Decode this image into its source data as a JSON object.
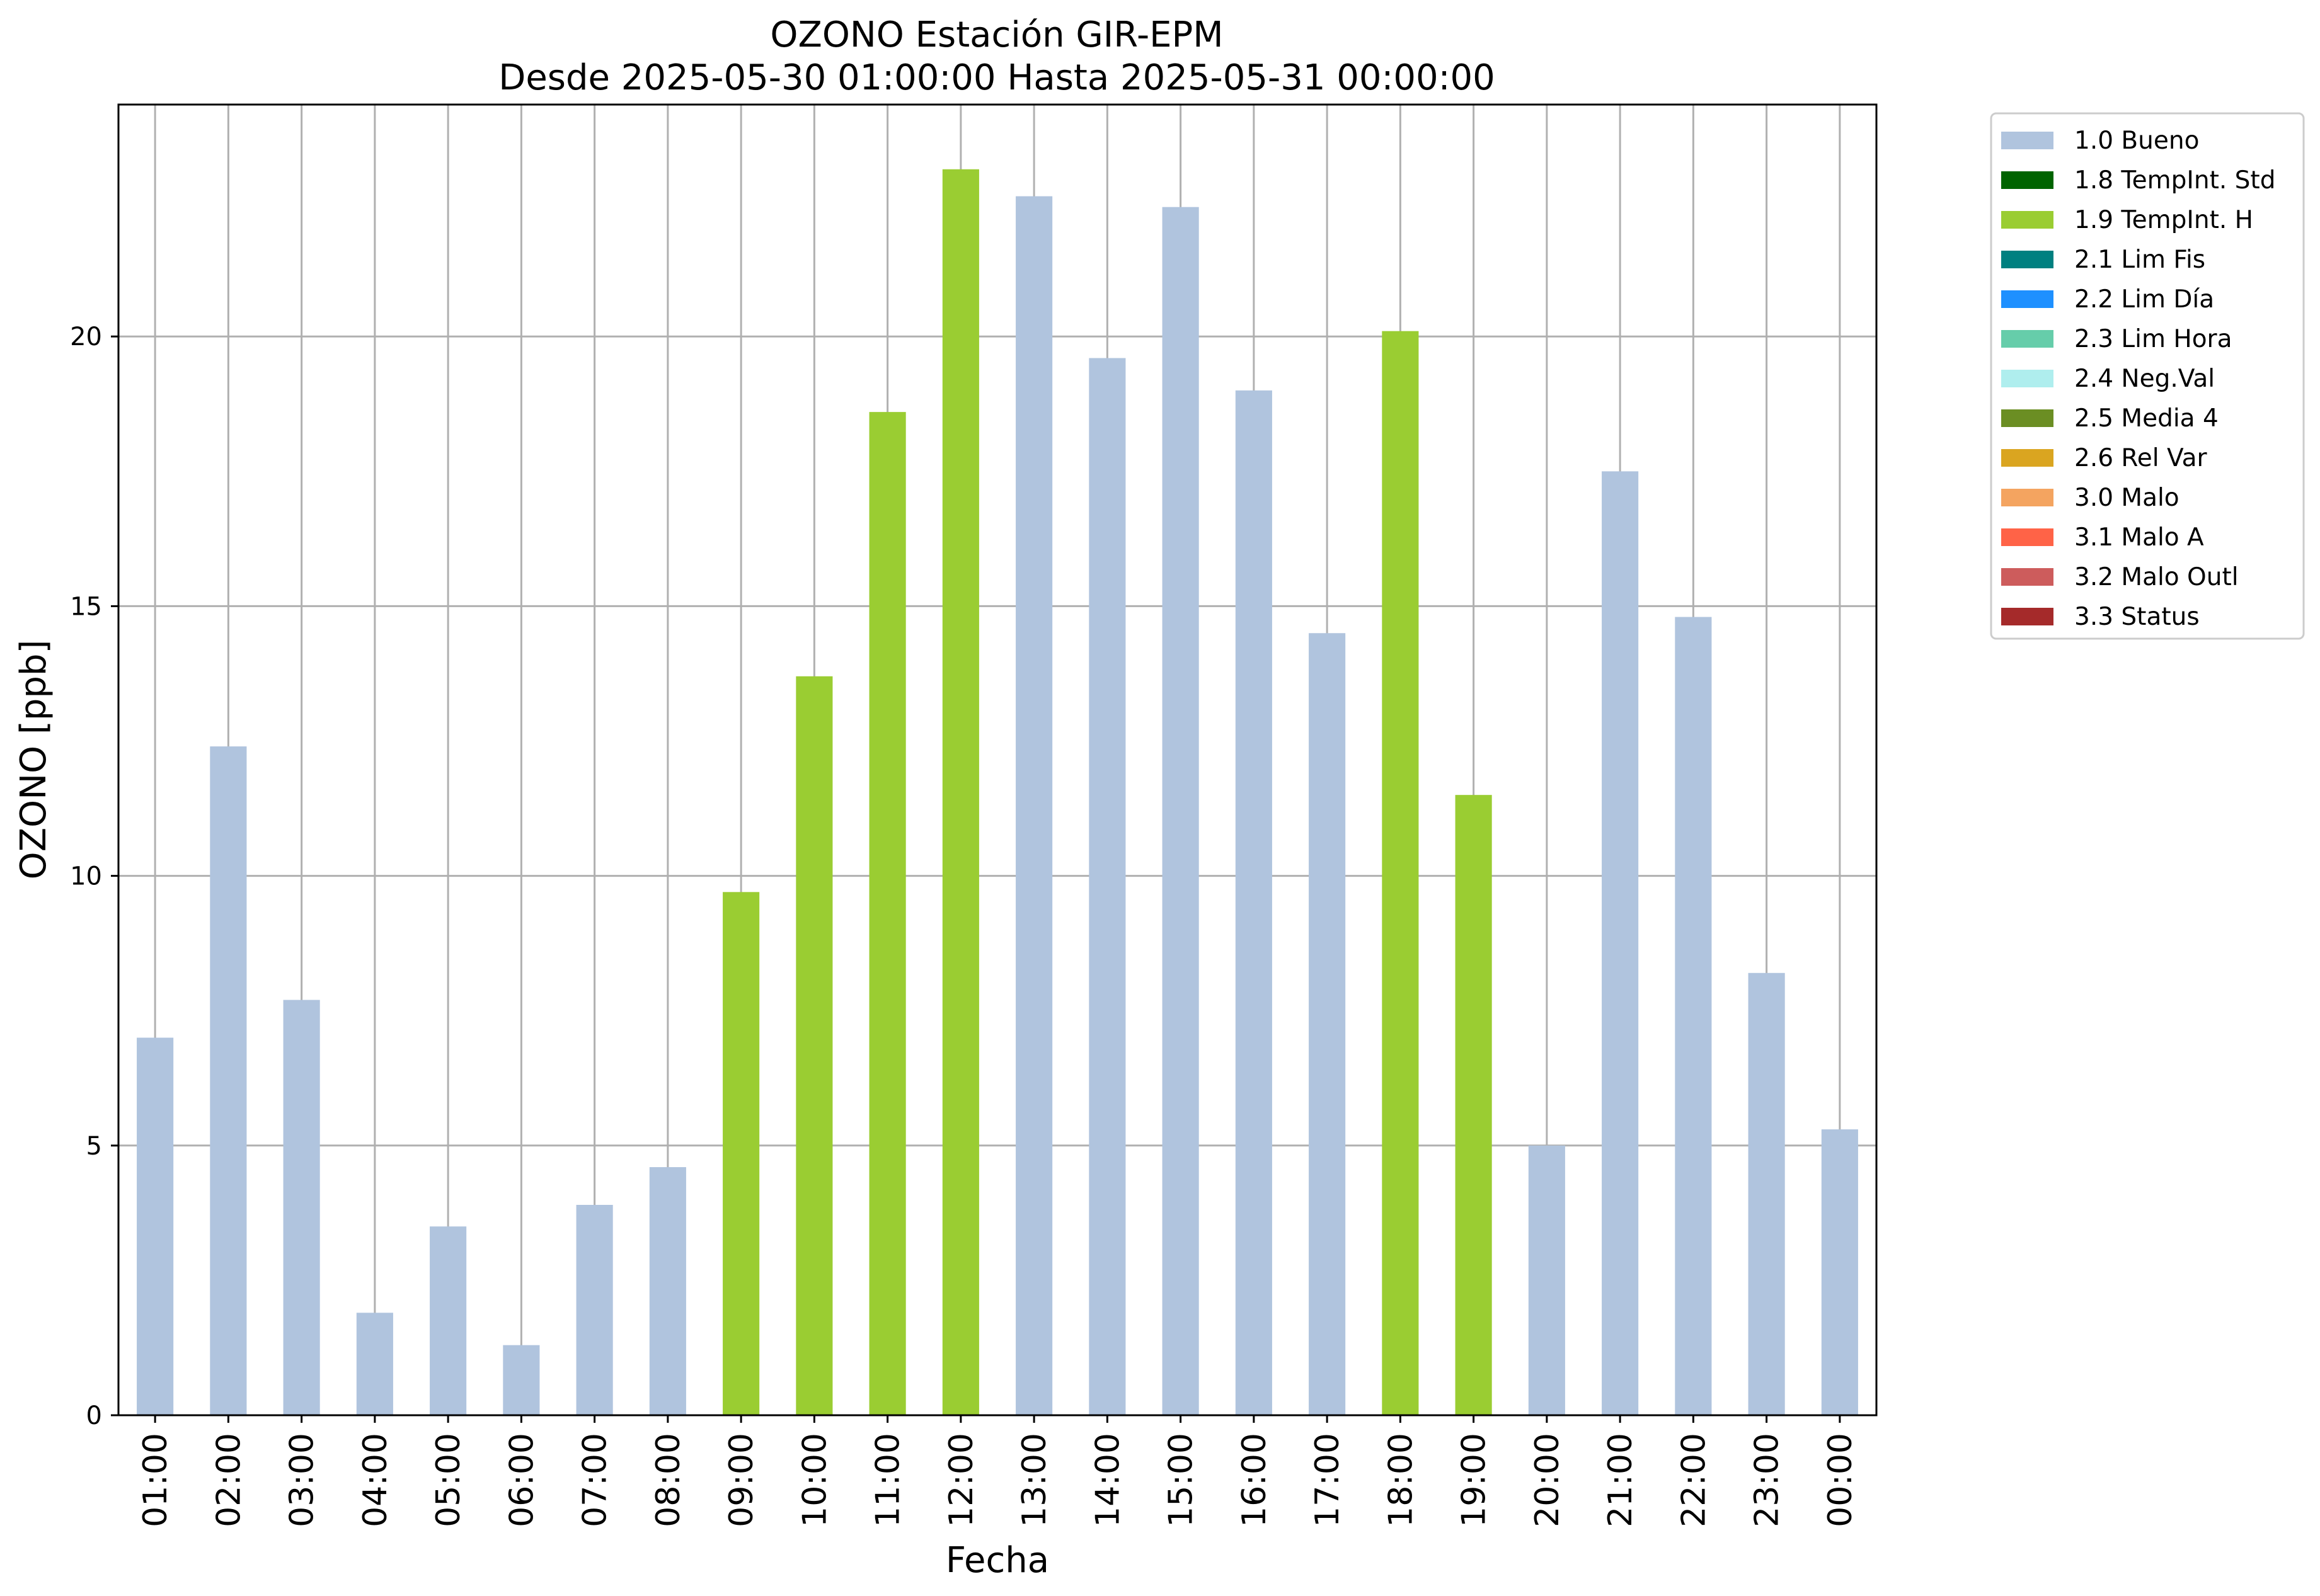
{
  "chart_data": {
    "type": "bar",
    "title": "OZONO Estación GIR-EPM",
    "subtitle": "Desde 2025-05-30 01:00:00 Hasta 2025-05-31 00:00:00",
    "xlabel": "Fecha",
    "ylabel": "OZONO [ppb]",
    "ylim": [
      0,
      24.3
    ],
    "yticks": [
      0,
      5,
      10,
      15,
      20
    ],
    "grid": true,
    "legend_position": "outside-top-right",
    "categories": [
      "01:00",
      "02:00",
      "03:00",
      "04:00",
      "05:00",
      "06:00",
      "07:00",
      "08:00",
      "09:00",
      "10:00",
      "11:00",
      "12:00",
      "13:00",
      "14:00",
      "15:00",
      "16:00",
      "17:00",
      "18:00",
      "19:00",
      "20:00",
      "21:00",
      "22:00",
      "23:00",
      "00:00"
    ],
    "values": [
      7.0,
      12.4,
      7.7,
      1.9,
      3.5,
      1.3,
      3.9,
      4.6,
      9.7,
      13.7,
      18.6,
      23.1,
      22.6,
      19.6,
      22.4,
      19.0,
      14.5,
      20.1,
      11.5,
      5.0,
      17.5,
      14.8,
      8.2,
      5.3
    ],
    "flags": [
      "1.0 Bueno",
      "1.0 Bueno",
      "1.0 Bueno",
      "1.0 Bueno",
      "1.0 Bueno",
      "1.0 Bueno",
      "1.0 Bueno",
      "1.0 Bueno",
      "1.9 TempInt. H",
      "1.9 TempInt. H",
      "1.9 TempInt. H",
      "1.9 TempInt. H",
      "1.0 Bueno",
      "1.0 Bueno",
      "1.0 Bueno",
      "1.0 Bueno",
      "1.0 Bueno",
      "1.9 TempInt. H",
      "1.9 TempInt. H",
      "1.0 Bueno",
      "1.0 Bueno",
      "1.0 Bueno",
      "1.0 Bueno",
      "1.0 Bueno"
    ],
    "legend": [
      {
        "label": "1.0 Bueno",
        "color": "#b0c4de"
      },
      {
        "label": "1.8 TempInt. Std",
        "color": "#006400"
      },
      {
        "label": "1.9 TempInt. H",
        "color": "#9acd32"
      },
      {
        "label": "2.1 Lim Fis",
        "color": "#008080"
      },
      {
        "label": "2.2 Lim Día",
        "color": "#1e90ff"
      },
      {
        "label": "2.3 Lim Hora",
        "color": "#66cdaa"
      },
      {
        "label": "2.4 Neg.Val",
        "color": "#afeeee"
      },
      {
        "label": "2.5 Media 4",
        "color": "#6b8e23"
      },
      {
        "label": "2.6 Rel Var",
        "color": "#daa520"
      },
      {
        "label": "3.0 Malo",
        "color": "#f4a460"
      },
      {
        "label": "3.1 Malo A",
        "color": "#ff6347"
      },
      {
        "label": "3.2 Malo Outl",
        "color": "#cd5c5c"
      },
      {
        "label": "3.3 Status",
        "color": "#a52a2a"
      }
    ]
  }
}
